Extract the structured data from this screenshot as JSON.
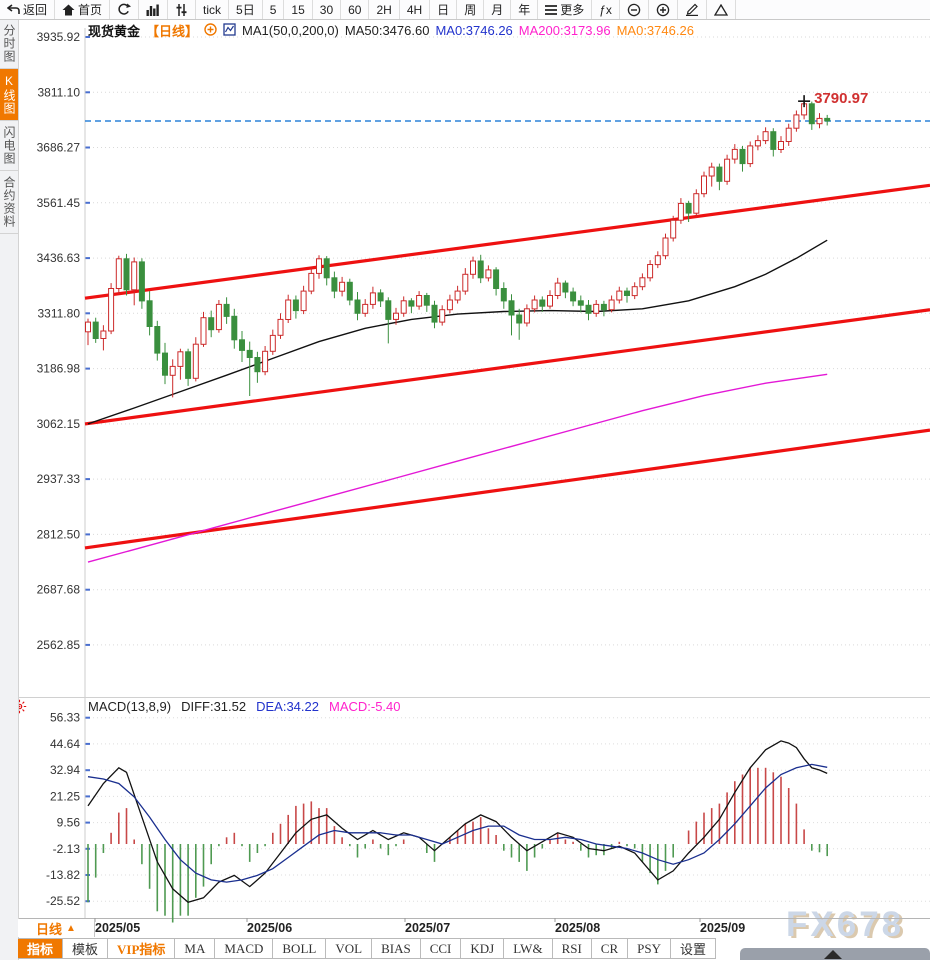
{
  "toolbar": {
    "items": [
      {
        "icon": "back-icon",
        "label": "返回"
      },
      {
        "icon": "home-icon",
        "label": "首页"
      },
      {
        "icon": "refresh-icon",
        "label": ""
      },
      {
        "icon": "bar-chart-icon",
        "label": ""
      },
      {
        "icon": "sliders-icon",
        "label": ""
      },
      {
        "icon": "",
        "label": "tick"
      },
      {
        "icon": "",
        "label": "5日"
      },
      {
        "icon": "",
        "label": "5"
      },
      {
        "icon": "",
        "label": "15"
      },
      {
        "icon": "",
        "label": "30"
      },
      {
        "icon": "",
        "label": "60"
      },
      {
        "icon": "",
        "label": "2H"
      },
      {
        "icon": "",
        "label": "4H"
      },
      {
        "icon": "",
        "label": "日"
      },
      {
        "icon": "",
        "label": "周"
      },
      {
        "icon": "",
        "label": "月"
      },
      {
        "icon": "",
        "label": "年"
      },
      {
        "icon": "menu-icon",
        "label": "更多"
      },
      {
        "icon": "",
        "label": "ƒx"
      },
      {
        "icon": "zoom-out-icon",
        "label": ""
      },
      {
        "icon": "zoom-in-icon",
        "label": ""
      },
      {
        "icon": "pencil-icon",
        "label": ""
      },
      {
        "icon": "triangle-icon",
        "label": ""
      }
    ]
  },
  "sidebar": {
    "items": [
      {
        "label": "分时图",
        "selected": false
      },
      {
        "label": "K线图",
        "selected": true
      },
      {
        "label": "闪电图",
        "selected": false
      },
      {
        "label": "合约资料",
        "selected": false
      }
    ]
  },
  "header": {
    "symbol": "现货黄金",
    "period": "【日线】",
    "ma_settings": "MA1(50,0,200,0)",
    "ma50_label": "MA50:3476.60",
    "ma0_blue": "MA0:3746.26",
    "ma200_label": "MA200:3173.96",
    "ma0_orange": "MA0:3746.26"
  },
  "macd_header": {
    "title": "MACD(13,8,9)",
    "diff_label": "DIFF:31.52",
    "dea_label": "DEA:34.22",
    "macd_label": "MACD:-5.40"
  },
  "bottom": {
    "period_label": "日线",
    "period_arrow": "▲",
    "x_labels": [
      "2025/05",
      "2025/06",
      "2025/07",
      "2025/08",
      "2025/09"
    ],
    "tabs": [
      {
        "label": "指标",
        "selected": true,
        "vip": false
      },
      {
        "label": "模板",
        "selected": false,
        "vip": false
      },
      {
        "label": "VIP指标",
        "selected": false,
        "vip": true
      },
      {
        "label": "MA",
        "selected": false,
        "vip": false
      },
      {
        "label": "MACD",
        "selected": false,
        "vip": false
      },
      {
        "label": "BOLL",
        "selected": false,
        "vip": false
      },
      {
        "label": "VOL",
        "selected": false,
        "vip": false
      },
      {
        "label": "BIAS",
        "selected": false,
        "vip": false
      },
      {
        "label": "CCI",
        "selected": false,
        "vip": false
      },
      {
        "label": "KDJ",
        "selected": false,
        "vip": false
      },
      {
        "label": "LW&",
        "selected": false,
        "vip": false
      },
      {
        "label": "RSI",
        "selected": false,
        "vip": false
      },
      {
        "label": "CR",
        "selected": false,
        "vip": false
      },
      {
        "label": "PSY",
        "selected": false,
        "vip": false
      },
      {
        "label": "设置",
        "selected": false,
        "vip": false
      }
    ]
  },
  "watermark": "FX678",
  "colors": {
    "accent_orange": "#f07800",
    "up_red": "#cc2a2a",
    "down_green": "#3a8f3e",
    "trend_red": "#ee1111",
    "ma50_black": "#111111",
    "ma200_magenta": "#e318d6",
    "dea_blue": "#1a2f8f",
    "price_line_blue": "#2b82d9",
    "hist_red": "#c84848",
    "hist_green": "#4f9a52"
  },
  "chart_data": {
    "type": "candlestick",
    "title": "现货黄金 日线",
    "y_ticks": [
      3935.92,
      3811.1,
      3686.27,
      3561.45,
      3436.63,
      3311.8,
      3186.98,
      3062.15,
      2937.33,
      2812.5,
      2687.68,
      2562.85
    ],
    "price_line": 3746.26,
    "high_annotation": {
      "text": "3790.97",
      "index": 93,
      "price": 3791
    },
    "candles": [
      [
        3270,
        3300,
        3240,
        3292
      ],
      [
        3292,
        3302,
        3245,
        3255
      ],
      [
        3255,
        3285,
        3228,
        3272
      ],
      [
        3272,
        3380,
        3265,
        3368
      ],
      [
        3368,
        3442,
        3355,
        3435
      ],
      [
        3435,
        3446,
        3352,
        3365
      ],
      [
        3365,
        3438,
        3330,
        3428
      ],
      [
        3428,
        3436,
        3322,
        3340
      ],
      [
        3340,
        3362,
        3262,
        3282
      ],
      [
        3282,
        3295,
        3205,
        3222
      ],
      [
        3222,
        3245,
        3152,
        3172
      ],
      [
        3172,
        3208,
        3122,
        3192
      ],
      [
        3192,
        3232,
        3162,
        3225
      ],
      [
        3225,
        3232,
        3148,
        3165
      ],
      [
        3165,
        3258,
        3158,
        3242
      ],
      [
        3242,
        3315,
        3236,
        3302
      ],
      [
        3302,
        3318,
        3258,
        3275
      ],
      [
        3275,
        3342,
        3268,
        3332
      ],
      [
        3332,
        3348,
        3288,
        3305
      ],
      [
        3305,
        3322,
        3232,
        3252
      ],
      [
        3252,
        3272,
        3202,
        3228
      ],
      [
        3228,
        3248,
        3125,
        3212
      ],
      [
        3212,
        3225,
        3155,
        3180
      ],
      [
        3180,
        3238,
        3172,
        3226
      ],
      [
        3226,
        3275,
        3218,
        3262
      ],
      [
        3262,
        3312,
        3254,
        3298
      ],
      [
        3298,
        3354,
        3290,
        3342
      ],
      [
        3342,
        3352,
        3300,
        3318
      ],
      [
        3318,
        3374,
        3310,
        3362
      ],
      [
        3362,
        3415,
        3355,
        3402
      ],
      [
        3402,
        3443,
        3390,
        3435
      ],
      [
        3435,
        3441,
        3375,
        3392
      ],
      [
        3392,
        3406,
        3346,
        3362
      ],
      [
        3362,
        3394,
        3350,
        3382
      ],
      [
        3382,
        3390,
        3330,
        3342
      ],
      [
        3342,
        3360,
        3296,
        3312
      ],
      [
        3312,
        3344,
        3304,
        3332
      ],
      [
        3332,
        3372,
        3322,
        3358
      ],
      [
        3358,
        3366,
        3326,
        3340
      ],
      [
        3340,
        3348,
        3244,
        3298
      ],
      [
        3298,
        3324,
        3286,
        3312
      ],
      [
        3312,
        3350,
        3304,
        3340
      ],
      [
        3340,
        3346,
        3312,
        3328
      ],
      [
        3328,
        3362,
        3320,
        3352
      ],
      [
        3352,
        3358,
        3315,
        3330
      ],
      [
        3330,
        3340,
        3278,
        3292
      ],
      [
        3292,
        3330,
        3284,
        3320
      ],
      [
        3320,
        3354,
        3312,
        3342
      ],
      [
        3342,
        3374,
        3334,
        3362
      ],
      [
        3362,
        3414,
        3354,
        3400
      ],
      [
        3400,
        3440,
        3390,
        3430
      ],
      [
        3430,
        3444,
        3380,
        3392
      ],
      [
        3392,
        3420,
        3384,
        3410
      ],
      [
        3410,
        3416,
        3352,
        3368
      ],
      [
        3368,
        3382,
        3322,
        3340
      ],
      [
        3340,
        3355,
        3262,
        3308
      ],
      [
        3308,
        3322,
        3252,
        3290
      ],
      [
        3290,
        3332,
        3282,
        3322
      ],
      [
        3322,
        3352,
        3314,
        3342
      ],
      [
        3342,
        3350,
        3315,
        3328
      ],
      [
        3328,
        3364,
        3322,
        3352
      ],
      [
        3352,
        3392,
        3344,
        3380
      ],
      [
        3380,
        3386,
        3346,
        3360
      ],
      [
        3360,
        3370,
        3328,
        3340
      ],
      [
        3340,
        3352,
        3314,
        3330
      ],
      [
        3330,
        3342,
        3296,
        3312
      ],
      [
        3312,
        3342,
        3304,
        3332
      ],
      [
        3332,
        3340,
        3305,
        3320
      ],
      [
        3320,
        3352,
        3314,
        3342
      ],
      [
        3342,
        3372,
        3334,
        3362
      ],
      [
        3362,
        3370,
        3336,
        3352
      ],
      [
        3352,
        3382,
        3344,
        3372
      ],
      [
        3372,
        3402,
        3364,
        3392
      ],
      [
        3392,
        3432,
        3384,
        3422
      ],
      [
        3422,
        3452,
        3414,
        3442
      ],
      [
        3442,
        3492,
        3434,
        3482
      ],
      [
        3482,
        3532,
        3474,
        3522
      ],
      [
        3522,
        3572,
        3514,
        3560
      ],
      [
        3560,
        3566,
        3518,
        3538
      ],
      [
        3538,
        3592,
        3530,
        3582
      ],
      [
        3582,
        3632,
        3574,
        3622
      ],
      [
        3622,
        3652,
        3598,
        3642
      ],
      [
        3642,
        3650,
        3590,
        3610
      ],
      [
        3610,
        3670,
        3602,
        3660
      ],
      [
        3660,
        3694,
        3650,
        3682
      ],
      [
        3682,
        3690,
        3632,
        3650
      ],
      [
        3650,
        3700,
        3642,
        3690
      ],
      [
        3690,
        3714,
        3680,
        3702
      ],
      [
        3702,
        3732,
        3694,
        3722
      ],
      [
        3722,
        3730,
        3666,
        3682
      ],
      [
        3682,
        3712,
        3674,
        3700
      ],
      [
        3700,
        3740,
        3690,
        3730
      ],
      [
        3730,
        3770,
        3722,
        3760
      ],
      [
        3760,
        3791,
        3750,
        3785
      ],
      [
        3785,
        3790,
        3726,
        3740
      ],
      [
        3740,
        3764,
        3730,
        3752
      ],
      [
        3752,
        3760,
        3736,
        3746.26
      ]
    ],
    "ma50_anchors": [
      [
        0,
        3062
      ],
      [
        6,
        3098
      ],
      [
        12,
        3135
      ],
      [
        18,
        3172
      ],
      [
        24,
        3210
      ],
      [
        30,
        3248
      ],
      [
        36,
        3278
      ],
      [
        42,
        3298
      ],
      [
        48,
        3310
      ],
      [
        54,
        3316
      ],
      [
        60,
        3318
      ],
      [
        66,
        3316
      ],
      [
        72,
        3322
      ],
      [
        78,
        3340
      ],
      [
        84,
        3372
      ],
      [
        88,
        3400
      ],
      [
        92,
        3436
      ],
      [
        96,
        3477
      ]
    ],
    "ma200_anchors": [
      [
        0,
        2750
      ],
      [
        8,
        2788
      ],
      [
        16,
        2826
      ],
      [
        24,
        2864
      ],
      [
        32,
        2902
      ],
      [
        40,
        2940
      ],
      [
        48,
        2978
      ],
      [
        56,
        3016
      ],
      [
        64,
        3054
      ],
      [
        72,
        3092
      ],
      [
        80,
        3126
      ],
      [
        88,
        3154
      ],
      [
        96,
        3174
      ]
    ],
    "trendlines": [
      {
        "name": "upper",
        "p_left": 3346,
        "p_right": 3601
      },
      {
        "name": "middle",
        "p_left": 3062,
        "p_right": 3320
      },
      {
        "name": "lower",
        "p_left": 2782,
        "p_right": 3048
      }
    ]
  },
  "macd_data": {
    "type": "line",
    "y_ticks": [
      56.33,
      44.64,
      32.94,
      21.25,
      9.56,
      -2.13,
      -13.82,
      -25.52
    ],
    "diff_anchors": [
      [
        0,
        17
      ],
      [
        2,
        27
      ],
      [
        4,
        34
      ],
      [
        5,
        32
      ],
      [
        7,
        12
      ],
      [
        9,
        -8
      ],
      [
        11,
        -20
      ],
      [
        13,
        -26
      ],
      [
        15,
        -24
      ],
      [
        17,
        -17
      ],
      [
        19,
        -14
      ],
      [
        21,
        -19
      ],
      [
        23,
        -13
      ],
      [
        25,
        -4
      ],
      [
        27,
        5
      ],
      [
        29,
        11
      ],
      [
        31,
        13
      ],
      [
        33,
        7
      ],
      [
        35,
        2
      ],
      [
        37,
        6
      ],
      [
        39,
        2
      ],
      [
        41,
        5
      ],
      [
        43,
        3
      ],
      [
        45,
        -3
      ],
      [
        47,
        3
      ],
      [
        49,
        9
      ],
      [
        51,
        13
      ],
      [
        53,
        10
      ],
      [
        55,
        3
      ],
      [
        57,
        -3
      ],
      [
        59,
        1
      ],
      [
        61,
        5
      ],
      [
        63,
        3
      ],
      [
        65,
        -2
      ],
      [
        67,
        -3
      ],
      [
        69,
        -1
      ],
      [
        71,
        -4
      ],
      [
        74,
        -16
      ],
      [
        76,
        -12
      ],
      [
        78,
        -4
      ],
      [
        80,
        3
      ],
      [
        82,
        11
      ],
      [
        84,
        23
      ],
      [
        86,
        34
      ],
      [
        88,
        42
      ],
      [
        90,
        46
      ],
      [
        91,
        45
      ],
      [
        92,
        43
      ],
      [
        93,
        38
      ],
      [
        94,
        34
      ],
      [
        95,
        33
      ],
      [
        96,
        31.5
      ]
    ],
    "dea_anchors": [
      [
        0,
        30
      ],
      [
        2,
        29
      ],
      [
        4,
        27
      ],
      [
        6,
        21
      ],
      [
        8,
        12
      ],
      [
        10,
        2
      ],
      [
        12,
        -7
      ],
      [
        14,
        -13
      ],
      [
        16,
        -16
      ],
      [
        18,
        -17
      ],
      [
        20,
        -16
      ],
      [
        22,
        -14
      ],
      [
        24,
        -11
      ],
      [
        26,
        -6
      ],
      [
        28,
        -1
      ],
      [
        30,
        4
      ],
      [
        32,
        6
      ],
      [
        34,
        5
      ],
      [
        36,
        5
      ],
      [
        38,
        5
      ],
      [
        40,
        4
      ],
      [
        42,
        4
      ],
      [
        44,
        2
      ],
      [
        46,
        0
      ],
      [
        48,
        3
      ],
      [
        50,
        6
      ],
      [
        52,
        8
      ],
      [
        54,
        8
      ],
      [
        56,
        4
      ],
      [
        58,
        2
      ],
      [
        60,
        2
      ],
      [
        62,
        3
      ],
      [
        64,
        2
      ],
      [
        66,
        0
      ],
      [
        68,
        -1
      ],
      [
        70,
        -2
      ],
      [
        72,
        -4
      ],
      [
        74,
        -7
      ],
      [
        76,
        -9
      ],
      [
        78,
        -7
      ],
      [
        80,
        -4
      ],
      [
        82,
        2
      ],
      [
        84,
        9
      ],
      [
        86,
        17
      ],
      [
        88,
        25
      ],
      [
        90,
        31
      ],
      [
        92,
        34
      ],
      [
        94,
        35.5
      ],
      [
        96,
        34.2
      ]
    ]
  }
}
